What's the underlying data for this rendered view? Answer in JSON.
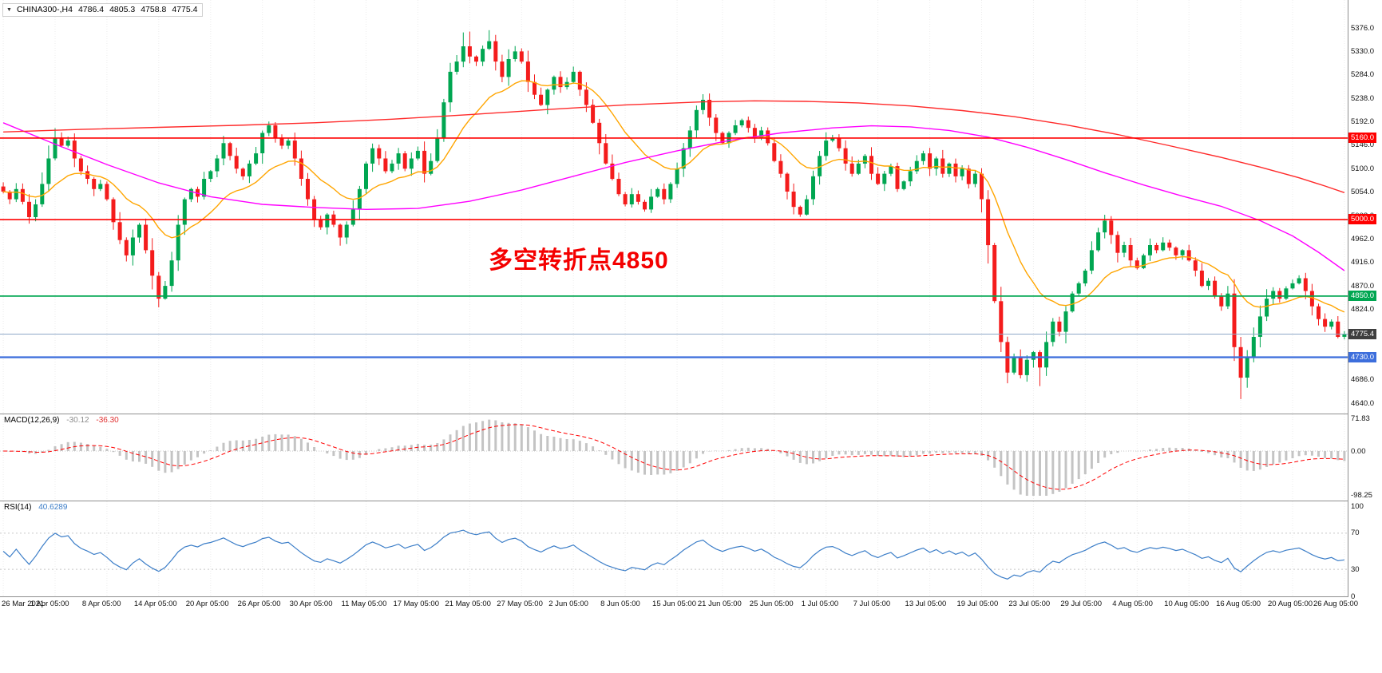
{
  "window": {
    "dropdown_icon": "▼",
    "symbol_title": "CHINA300-,H4",
    "open": "4786.4",
    "high": "4805.3",
    "low": "4758.8",
    "close": "4775.4"
  },
  "chart_data": [
    {
      "type": "candlestick",
      "name": "main-price-chart",
      "title": "CHINA300-,H4",
      "timeframe": "H4",
      "ylim": [
        4640,
        5376
      ],
      "y_ticks": [
        "5376.0",
        "5330.0",
        "5284.0",
        "5238.0",
        "5192.0",
        "5146.0",
        "5100.0",
        "5054.0",
        "5008.0",
        "4962.0",
        "4916.0",
        "4870.0",
        "4824.0",
        "4778.0",
        "4732.0",
        "4686.0",
        "4640.0"
      ],
      "x_labels": [
        "26 Mar 2021",
        "1 Apr 05:00",
        "8 Apr 05:00",
        "14 Apr 05:00",
        "20 Apr 05:00",
        "26 Apr 05:00",
        "30 Apr 05:00",
        "11 May 05:00",
        "17 May 05:00",
        "21 May 05:00",
        "27 May 05:00",
        "2 Jun 05:00",
        "8 Jun 05:00",
        "15 Jun 05:00",
        "21 Jun 05:00",
        "25 Jun 05:00",
        "1 Jul 05:00",
        "7 Jul 05:00",
        "13 Jul 05:00",
        "19 Jul 05:00",
        "23 Jul 05:00",
        "29 Jul 05:00",
        "4 Aug 05:00",
        "10 Aug 05:00",
        "16 Aug 05:00",
        "20 Aug 05:00",
        "26 Aug 05:00"
      ],
      "closes": [
        5055,
        5040,
        5060,
        5035,
        5005,
        5030,
        5070,
        5120,
        5160,
        5145,
        5155,
        5120,
        5095,
        5080,
        5060,
        5070,
        5040,
        4995,
        4960,
        4930,
        4965,
        4990,
        4940,
        4890,
        4845,
        4870,
        4920,
        4990,
        5040,
        5060,
        5045,
        5080,
        5095,
        5120,
        5150,
        5125,
        5100,
        5085,
        5110,
        5130,
        5170,
        5185,
        5160,
        5145,
        5155,
        5120,
        5080,
        5040,
        5000,
        4985,
        5010,
        4990,
        4965,
        4990,
        5020,
        5060,
        5110,
        5140,
        5120,
        5095,
        5110,
        5130,
        5100,
        5120,
        5135,
        5090,
        5115,
        5160,
        5230,
        5290,
        5310,
        5340,
        5320,
        5310,
        5335,
        5350,
        5310,
        5280,
        5315,
        5330,
        5310,
        5270,
        5245,
        5225,
        5255,
        5280,
        5260,
        5270,
        5290,
        5255,
        5225,
        5190,
        5150,
        5110,
        5080,
        5050,
        5030,
        5050,
        5035,
        5020,
        5045,
        5060,
        5040,
        5070,
        5100,
        5140,
        5175,
        5215,
        5235,
        5200,
        5170,
        5150,
        5170,
        5185,
        5195,
        5180,
        5160,
        5175,
        5150,
        5115,
        5090,
        5055,
        5025,
        5010,
        5040,
        5085,
        5125,
        5155,
        5160,
        5140,
        5110,
        5090,
        5110,
        5125,
        5090,
        5070,
        5090,
        5105,
        5060,
        5075,
        5095,
        5115,
        5130,
        5100,
        5120,
        5090,
        5110,
        5085,
        5100,
        5070,
        5090,
        5040,
        4950,
        4840,
        4760,
        4700,
        4730,
        4695,
        4725,
        4740,
        4710,
        4760,
        4800,
        4780,
        4820,
        4855,
        4875,
        4900,
        4940,
        4975,
        4998,
        4970,
        4935,
        4950,
        4920,
        4905,
        4930,
        4950,
        4940,
        4955,
        4945,
        4930,
        4940,
        4920,
        4900,
        4870,
        4880,
        4850,
        4830,
        4855,
        4750,
        4690,
        4730,
        4770,
        4810,
        4845,
        4860,
        4845,
        4865,
        4875,
        4885,
        4860,
        4830,
        4805,
        4790,
        4800,
        4770,
        4775.4
      ],
      "ma_mid_points": [
        [
          0,
          5190
        ],
        [
          8,
          5148
        ],
        [
          16,
          5108
        ],
        [
          24,
          5072
        ],
        [
          32,
          5045
        ],
        [
          40,
          5030
        ],
        [
          48,
          5024
        ],
        [
          56,
          5020
        ],
        [
          64,
          5022
        ],
        [
          72,
          5036
        ],
        [
          80,
          5058
        ],
        [
          88,
          5085
        ],
        [
          96,
          5112
        ],
        [
          104,
          5135
        ],
        [
          112,
          5155
        ],
        [
          120,
          5170
        ],
        [
          128,
          5180
        ],
        [
          134,
          5184
        ],
        [
          140,
          5182
        ],
        [
          146,
          5175
        ],
        [
          152,
          5162
        ],
        [
          158,
          5142
        ],
        [
          164,
          5118
        ],
        [
          170,
          5092
        ],
        [
          176,
          5068
        ],
        [
          182,
          5046
        ],
        [
          188,
          5026
        ],
        [
          194,
          4998
        ],
        [
          199,
          4968
        ],
        [
          203,
          4936
        ],
        [
          207,
          4900
        ]
      ],
      "ma_slow_points": [
        [
          0,
          5172
        ],
        [
          12,
          5177
        ],
        [
          24,
          5181
        ],
        [
          36,
          5185
        ],
        [
          48,
          5190
        ],
        [
          60,
          5197
        ],
        [
          72,
          5206
        ],
        [
          84,
          5216
        ],
        [
          96,
          5225
        ],
        [
          108,
          5231
        ],
        [
          116,
          5233
        ],
        [
          124,
          5232
        ],
        [
          132,
          5229
        ],
        [
          140,
          5223
        ],
        [
          148,
          5214
        ],
        [
          156,
          5202
        ],
        [
          164,
          5186
        ],
        [
          172,
          5167
        ],
        [
          180,
          5145
        ],
        [
          188,
          5122
        ],
        [
          194,
          5103
        ],
        [
          200,
          5082
        ],
        [
          204,
          5066
        ],
        [
          207,
          5053
        ]
      ],
      "ma_fast_period": 16,
      "levels": [
        {
          "label": "5160.0",
          "price": 5160,
          "color": "#FF0000",
          "width": 1.6
        },
        {
          "label": "5000.0",
          "price": 5000,
          "color": "#FF0000",
          "width": 1.6
        },
        {
          "label": "4850.0",
          "price": 4850,
          "color": "#00A651",
          "width": 1.8
        },
        {
          "label": "4730.0",
          "price": 4730,
          "color": "#3C6EDC",
          "width": 2.2
        }
      ],
      "current_price": {
        "label": "4775.4",
        "value": 4775.4,
        "bg": "#3F3F3F",
        "line_color": "#8FA8C8"
      },
      "annotation": {
        "text": "多空转折点4850",
        "color": "#F40000"
      },
      "colors": {
        "bull": "#00A651",
        "bear": "#F41C1C",
        "ma_fast": "#FFA500",
        "ma_mid": "#FF00FF",
        "ma_slow": "#FF2A2A"
      }
    },
    {
      "type": "bar",
      "name": "MACD",
      "label": "MACD(12,26,9)",
      "value_main": "-30.12",
      "value_signal": "-36.30",
      "fast": 12,
      "slow": 26,
      "signal": 9,
      "y_ticks": [
        "71.83",
        "0.00",
        "-98.25"
      ],
      "colors": {
        "histogram": "#C4C4C4",
        "signal": "#FF0000"
      }
    },
    {
      "type": "line",
      "name": "RSI",
      "label": "RSI(14)",
      "value": "40.6289",
      "period": 14,
      "y_ticks": [
        "100",
        "70",
        "30",
        "0"
      ],
      "levels": [
        70,
        30
      ],
      "color": "#3C7EC8"
    }
  ]
}
